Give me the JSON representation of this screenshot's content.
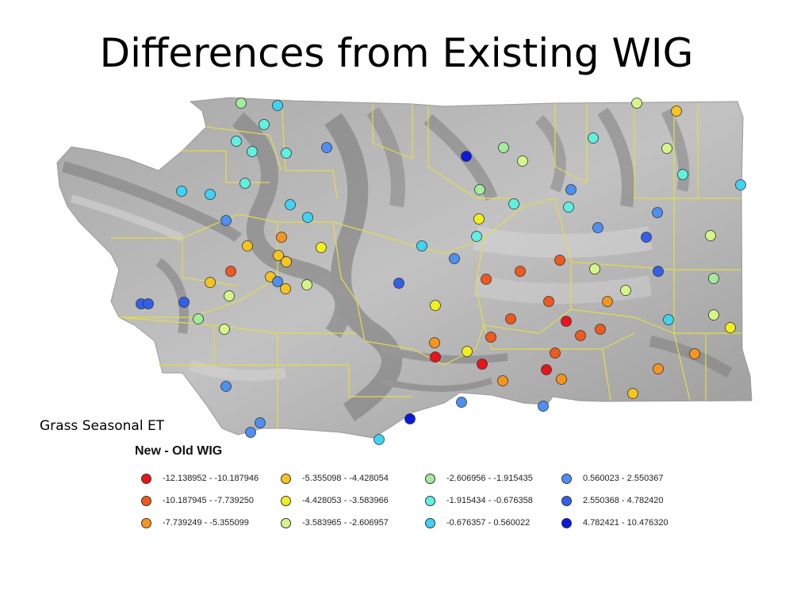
{
  "title": "Differences from Existing WIG",
  "subtitle": "Grass Seasonal ET",
  "legend": {
    "title": "New - Old WIG",
    "classes": [
      {
        "id": "c1",
        "label": "-12.138952 - -10.187946",
        "color": "#e8131b"
      },
      {
        "id": "c2",
        "label": "-10.187945 - -7.739250",
        "color": "#ee5a1e"
      },
      {
        "id": "c3",
        "label": "-7.739249 - -5.355099",
        "color": "#f5951f"
      },
      {
        "id": "c4",
        "label": "-5.355098 - -4.428054",
        "color": "#f7c41f"
      },
      {
        "id": "c5",
        "label": "-4.428053 - -3.583966",
        "color": "#f2ef1f"
      },
      {
        "id": "c6",
        "label": "-3.583965 - -2.606957",
        "color": "#d4f58a"
      },
      {
        "id": "c7",
        "label": "-2.606956 - -1.915435",
        "color": "#a2ec9c"
      },
      {
        "id": "c8",
        "label": "-1.915434 - -0.676358",
        "color": "#5ff0e0"
      },
      {
        "id": "c9",
        "label": "-0.676357 - 0.560022",
        "color": "#3fd3f3"
      },
      {
        "id": "c10",
        "label": "0.560023 - 2.550367",
        "color": "#4e8ff0"
      },
      {
        "id": "c11",
        "label": "2.550368 - 4.782420",
        "color": "#3360e8"
      },
      {
        "id": "c12",
        "label": "4.782421 - 10.476320",
        "color": "#0a18e0"
      }
    ]
  },
  "colors": {
    "boundary": "#e2dd4a",
    "terrain": "#b9b9b9",
    "terrain_dark": "#8e8e8e"
  }
}
